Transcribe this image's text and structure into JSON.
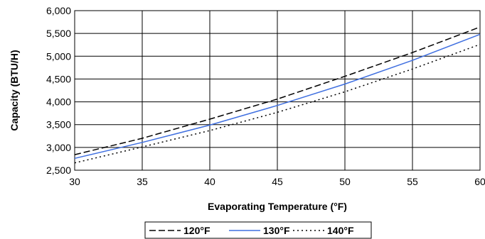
{
  "chart_data": {
    "type": "line",
    "title": "",
    "xlabel": "Evaporating Temperature (°F)",
    "ylabel": "Capacity (BTU/H)",
    "xlim": [
      30,
      60
    ],
    "ylim": [
      2500,
      6000
    ],
    "x_ticks": [
      "30",
      "35",
      "40",
      "45",
      "50",
      "55",
      "60"
    ],
    "y_ticks": [
      "2,500",
      "3,000",
      "3,500",
      "4,000",
      "4,500",
      "5,000",
      "5,500",
      "6,000"
    ],
    "grid": true,
    "legend_position": "bottom",
    "x": [
      30,
      35,
      40,
      45,
      50,
      55,
      60
    ],
    "series": [
      {
        "name": "120°F",
        "color": "#000000",
        "dash": "dashed",
        "values": [
          2840,
          3200,
          3620,
          4060,
          4560,
          5080,
          5640
        ]
      },
      {
        "name": "130°F",
        "color": "#3f6fe0",
        "dash": "solid",
        "values": [
          2760,
          3110,
          3490,
          3920,
          4390,
          4910,
          5480
        ]
      },
      {
        "name": "140°F",
        "color": "#000000",
        "dash": "dotted",
        "values": [
          2660,
          3010,
          3370,
          3770,
          4220,
          4720,
          5260
        ]
      }
    ]
  }
}
